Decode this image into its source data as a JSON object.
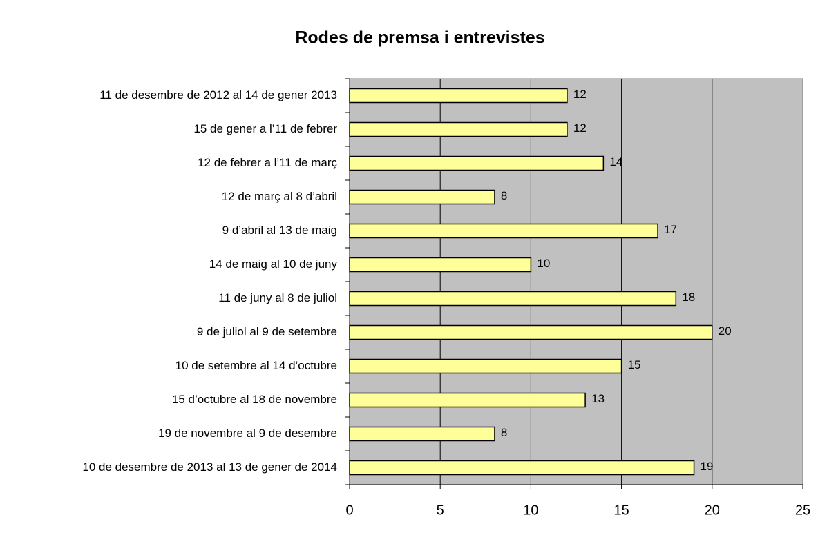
{
  "chart_data": {
    "type": "bar",
    "orientation": "horizontal",
    "title": "Rodes de premsa i entrevistes",
    "categories": [
      "11 de desembre de 2012 al 14 de gener 2013",
      "15 de gener a l’11 de febrer",
      "12 de febrer a l’11 de març",
      "12 de març al 8 d’abril",
      "9 d’abril al 13 de maig",
      "14 de maig al 10 de juny",
      "11 de juny al 8 de juliol",
      "9 de juliol al 9 de setembre",
      "10 de setembre al 14 d’octubre",
      "15 d’octubre al 18 de novembre",
      "19 de novembre al 9 de desembre",
      "10 de desembre de 2013 al 13 de gener de 2014"
    ],
    "values": [
      12,
      12,
      14,
      8,
      17,
      10,
      18,
      20,
      15,
      13,
      8,
      19
    ],
    "color": "#ffff99",
    "plot_background": "#c0c0c0",
    "xlim": [
      0,
      25
    ],
    "xticks": [
      0,
      5,
      10,
      15,
      20,
      25
    ],
    "grid": true
  }
}
